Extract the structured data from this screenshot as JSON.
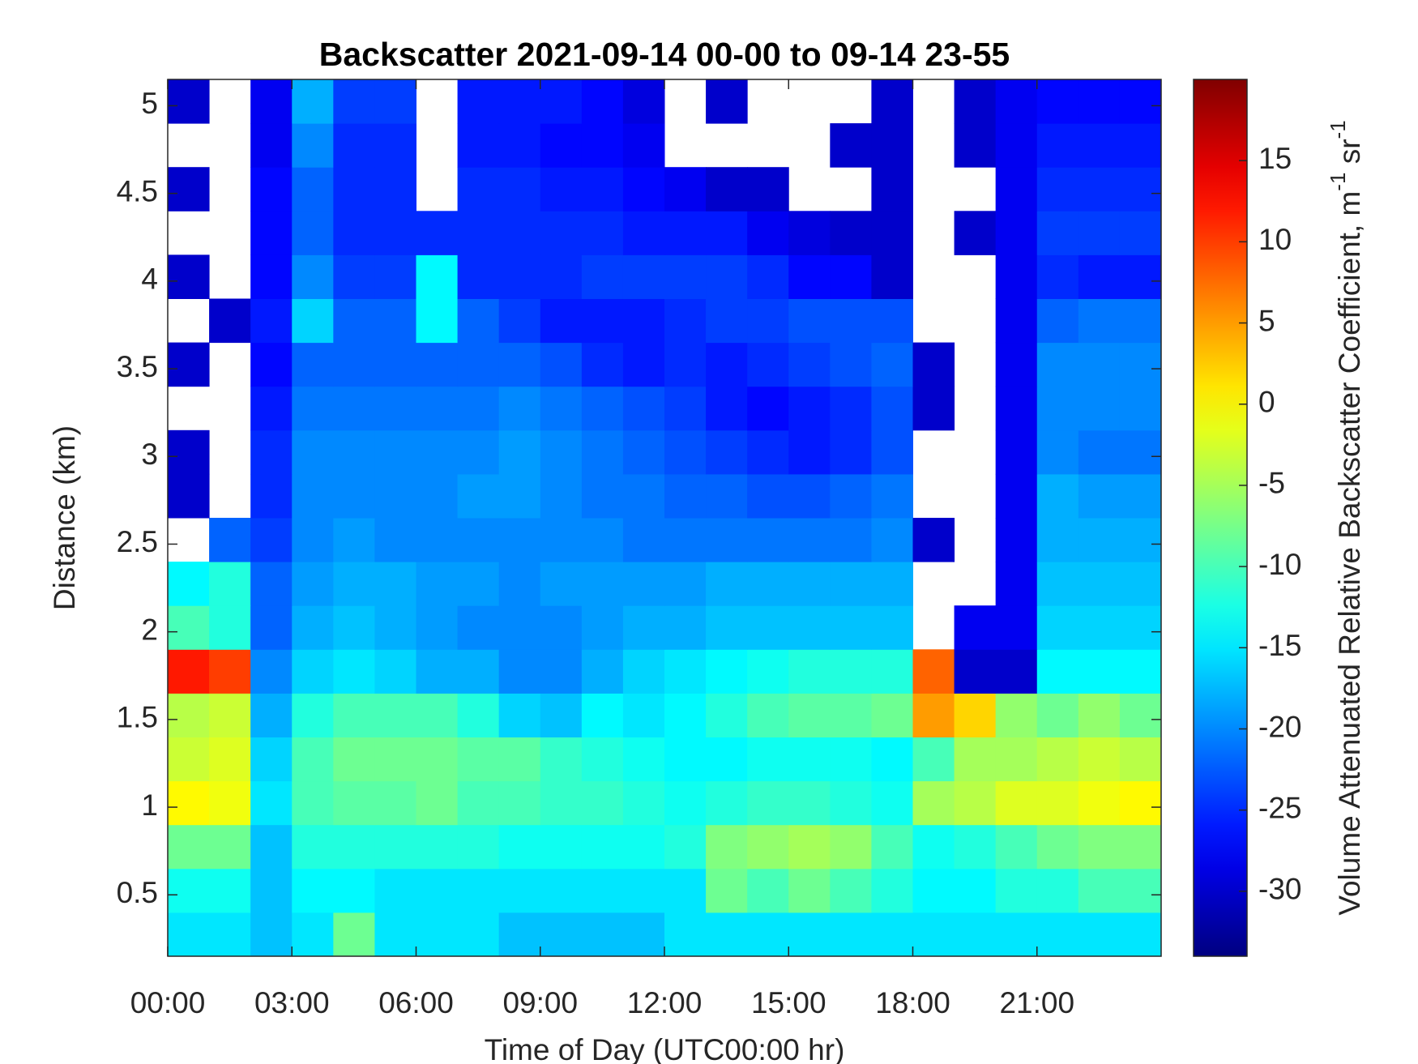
{
  "chart_data": {
    "type": "heatmap",
    "title": "Backscatter 2021-09-14 00-00 to 09-14 23-55",
    "xlabel": "Time of Day (UTC00:00 hr)",
    "ylabel": "Distance (km)",
    "colorbar_label": [
      "Volume Attenuated Relative Backscatter Coefficient, m",
      "-1",
      " sr",
      "-1"
    ],
    "colormap": "jet",
    "x": [
      0.5,
      1.5,
      2.5,
      3.5,
      4.5,
      5.5,
      6.5,
      7.5,
      8.5,
      9.5,
      10.5,
      11.5,
      12.5,
      13.5,
      14.5,
      15.5,
      16.5,
      17.5,
      18.5,
      19.5,
      20.5,
      21.5,
      22.5,
      23.5
    ],
    "y": [
      0.275,
      0.525,
      0.775,
      1.025,
      1.275,
      1.525,
      1.775,
      2.025,
      2.275,
      2.525,
      2.775,
      3.025,
      3.275,
      3.525,
      3.775,
      4.025,
      4.275,
      4.525,
      4.775,
      5.025
    ],
    "z": [
      [
        -15,
        -15,
        -17,
        -15,
        -8,
        -15,
        -15,
        -15,
        -17,
        -17,
        -17,
        -17,
        -15,
        -15,
        -15,
        -15,
        -15,
        -15,
        -15,
        -15,
        -15,
        -15,
        -15,
        -15
      ],
      [
        -13,
        -13,
        -17,
        -14,
        -14,
        -15,
        -15,
        -15,
        -15,
        -15,
        -15,
        -15,
        -15,
        -8,
        -10,
        -8,
        -10,
        -12,
        -14,
        -14,
        -12,
        -12,
        -10,
        -10
      ],
      [
        -8,
        -8,
        -17,
        -12,
        -12,
        -12,
        -12,
        -12,
        -13,
        -13,
        -13,
        -13,
        -12,
        -7,
        -6,
        -5,
        -6,
        -10,
        -13,
        -12,
        -10,
        -8,
        -7,
        -7
      ],
      [
        0,
        -1,
        -15,
        -10,
        -9,
        -9,
        -8,
        -10,
        -10,
        -11,
        -11,
        -12,
        -13,
        -12,
        -11,
        -11,
        -12,
        -13,
        -5,
        -4,
        -2,
        -2,
        -1,
        0
      ],
      [
        -3,
        -2,
        -16,
        -10,
        -8,
        -8,
        -8,
        -9,
        -9,
        -11,
        -12,
        -13,
        -14,
        -14,
        -13,
        -13,
        -13,
        -14,
        -10,
        -5,
        -5,
        -4,
        -3,
        -4
      ],
      [
        -4,
        -3,
        -18,
        -12,
        -10,
        -10,
        -10,
        -12,
        -16,
        -17,
        -14,
        -15,
        -14,
        -12,
        -10,
        -9,
        -9,
        -8,
        5,
        2,
        -6,
        -8,
        -6,
        -8
      ],
      [
        12,
        10,
        -20,
        -16,
        -15,
        -16,
        -18,
        -18,
        -20,
        -20,
        -18,
        -16,
        -15,
        -14,
        -13,
        -12,
        -12,
        -12,
        8,
        -30,
        -30,
        -14,
        -14,
        -14
      ],
      [
        -10,
        -12,
        -22,
        -18,
        -17,
        -18,
        -19,
        -20,
        -20,
        -20,
        -19,
        -18,
        -18,
        -17,
        -17,
        -17,
        -17,
        -17,
        null,
        -28,
        -28,
        -16,
        -16,
        -16
      ],
      [
        -14,
        -12,
        -22,
        -19,
        -18,
        -18,
        -19,
        -19,
        -20,
        -19,
        -19,
        -19,
        -19,
        -18,
        -18,
        -18,
        -18,
        -18,
        null,
        null,
        -28,
        -17,
        -17,
        -17
      ],
      [
        null,
        -22,
        -24,
        -20,
        -19,
        -20,
        -20,
        -20,
        -20,
        -20,
        -20,
        -21,
        -21,
        -21,
        -21,
        -21,
        -21,
        -20,
        -30,
        null,
        -28,
        -18,
        -18,
        -18
      ],
      [
        -30,
        null,
        -25,
        -20,
        -20,
        -20,
        -20,
        -19,
        -19,
        -20,
        -21,
        -21,
        -22,
        -22,
        -23,
        -23,
        -22,
        -21,
        null,
        null,
        -28,
        -18,
        -19,
        -19
      ],
      [
        -30,
        null,
        -25,
        -20,
        -20,
        -20,
        -20,
        -20,
        -19,
        -20,
        -21,
        -22,
        -23,
        -24,
        -25,
        -26,
        -25,
        -23,
        null,
        null,
        -28,
        -20,
        -21,
        -21
      ],
      [
        null,
        null,
        -26,
        -21,
        -21,
        -21,
        -21,
        -21,
        -20,
        -21,
        -22,
        -23,
        -24,
        -26,
        -27,
        -26,
        -25,
        -23,
        -30,
        null,
        -28,
        -20,
        -20,
        -20
      ],
      [
        -30,
        null,
        -27,
        -22,
        -22,
        -22,
        -22,
        -22,
        -22,
        -23,
        -25,
        -26,
        -25,
        -26,
        -25,
        -24,
        -23,
        -22,
        -30,
        null,
        -28,
        -20,
        -20,
        -20
      ],
      [
        null,
        -30,
        -26,
        -16,
        -22,
        -22,
        -14,
        -22,
        -24,
        -26,
        -26,
        -26,
        -25,
        -24,
        -24,
        -23,
        -23,
        -23,
        null,
        null,
        -28,
        -22,
        -21,
        -21
      ],
      [
        -30,
        null,
        -27,
        -20,
        -24,
        -24,
        -14,
        -25,
        -25,
        -25,
        -24,
        -24,
        -24,
        -24,
        -25,
        -27,
        -27,
        -30,
        null,
        null,
        -28,
        -25,
        -26,
        -26
      ],
      [
        null,
        null,
        -27,
        -22,
        -25,
        -25,
        -25,
        -25,
        -25,
        -25,
        -25,
        -26,
        -26,
        -26,
        -28,
        -29,
        -30,
        -30,
        null,
        -30,
        -28,
        -24,
        -24,
        -24
      ],
      [
        -30,
        null,
        -27,
        -22,
        -25,
        -25,
        null,
        -25,
        -25,
        -26,
        -26,
        -27,
        -28,
        -30,
        -30,
        null,
        null,
        -30,
        null,
        null,
        -28,
        -25,
        -25,
        -25
      ],
      [
        null,
        null,
        -28,
        -20,
        -25,
        -25,
        null,
        -26,
        -26,
        -27,
        -27,
        -28,
        null,
        null,
        null,
        null,
        -30,
        -30,
        null,
        -30,
        -28,
        -26,
        -26,
        -26
      ],
      [
        -30,
        null,
        -28,
        -18,
        -24,
        -24,
        null,
        -26,
        -26,
        -26,
        -27,
        -29,
        null,
        -30,
        null,
        null,
        null,
        -30,
        null,
        -30,
        -28,
        -27,
        -27,
        -27
      ]
    ],
    "xlim": [
      0,
      24
    ],
    "ylim": [
      0.15,
      5.15
    ],
    "clim": [
      -34,
      20
    ],
    "xticks": [
      {
        "value": 0,
        "label": "00:00"
      },
      {
        "value": 3,
        "label": "03:00"
      },
      {
        "value": 6,
        "label": "06:00"
      },
      {
        "value": 9,
        "label": "09:00"
      },
      {
        "value": 12,
        "label": "12:00"
      },
      {
        "value": 15,
        "label": "15:00"
      },
      {
        "value": 18,
        "label": "18:00"
      },
      {
        "value": 21,
        "label": "21:00"
      }
    ],
    "yticks": [
      0.5,
      1,
      1.5,
      2,
      2.5,
      3,
      3.5,
      4,
      4.5,
      5
    ],
    "cticks": [
      -30,
      -25,
      -20,
      -15,
      -10,
      -5,
      0,
      5,
      10,
      15
    ]
  }
}
